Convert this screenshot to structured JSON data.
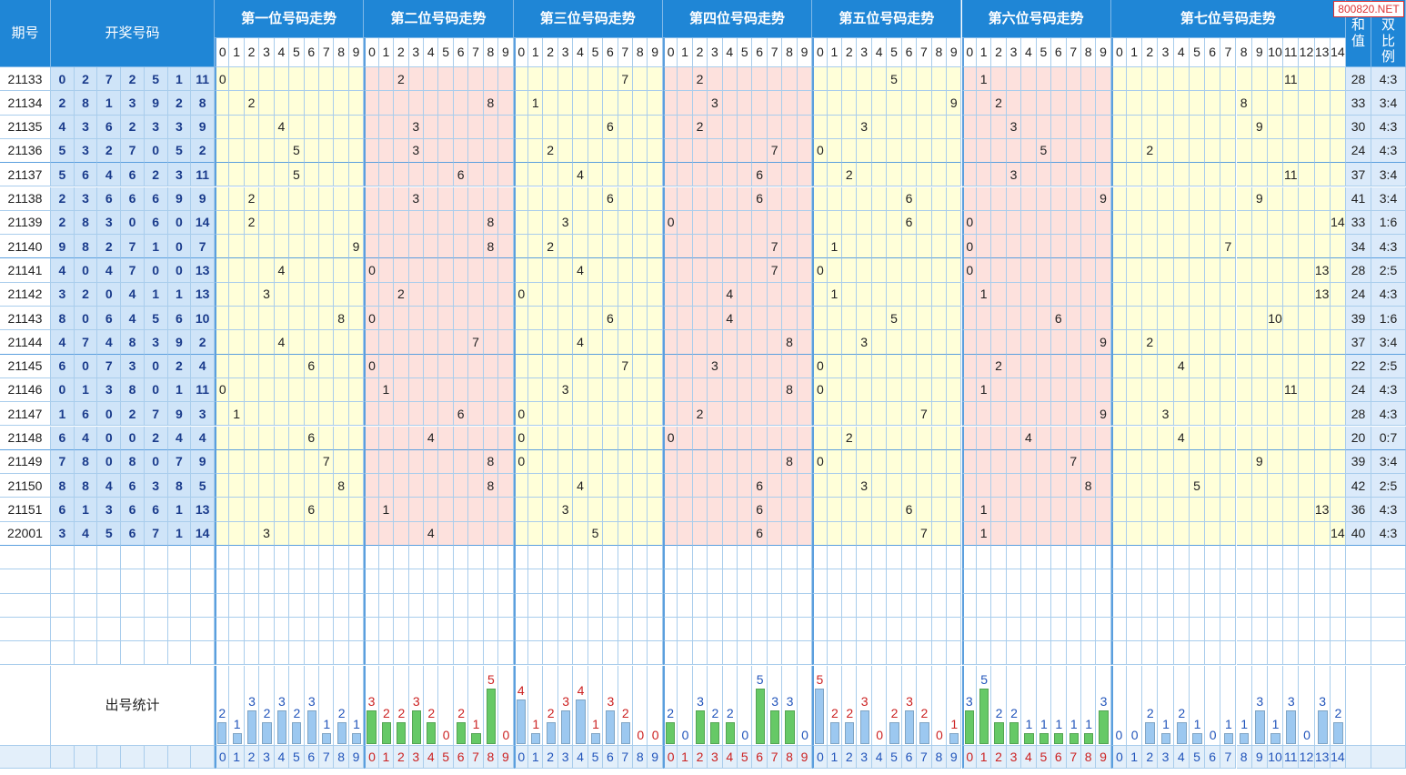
{
  "watermark": "800820.NET",
  "header": {
    "period": "期号",
    "draw": "开奖号码",
    "sum": "和值",
    "ratio": "单双比例",
    "stats": "出号统计"
  },
  "positions": [
    {
      "title": "第一位号码走势",
      "digits": [
        0,
        1,
        2,
        3,
        4,
        5,
        6,
        7,
        8,
        9
      ],
      "counts": [
        2,
        1,
        3,
        2,
        3,
        2,
        3,
        1,
        2,
        1
      ],
      "background": "#ffffd9",
      "count_color": "#2255bb",
      "bar_color": "#9cc8f0",
      "digit_color": "#2255bb"
    },
    {
      "title": "第二位号码走势",
      "digits": [
        0,
        1,
        2,
        3,
        4,
        5,
        6,
        7,
        8,
        9
      ],
      "counts": [
        3,
        2,
        2,
        3,
        2,
        0,
        2,
        1,
        5,
        0
      ],
      "background": "#fde1dd",
      "count_color": "#cc2222",
      "bar_color": "#66c966",
      "digit_color": "#cc2222"
    },
    {
      "title": "第三位号码走势",
      "digits": [
        0,
        1,
        2,
        3,
        4,
        5,
        6,
        7,
        8,
        9
      ],
      "counts": [
        4,
        1,
        2,
        3,
        4,
        1,
        3,
        2,
        0,
        0
      ],
      "background": "#ffffd9",
      "count_color": "#cc2222",
      "bar_color": "#9cc8f0",
      "digit_color": "#2255bb"
    },
    {
      "title": "第四位号码走势",
      "digits": [
        0,
        1,
        2,
        3,
        4,
        5,
        6,
        7,
        8,
        9
      ],
      "counts": [
        2,
        0,
        3,
        2,
        2,
        0,
        5,
        3,
        3,
        0
      ],
      "background": "#fde1dd",
      "count_color": "#2255bb",
      "bar_color": "#66c966",
      "digit_color": "#cc2222"
    },
    {
      "title": "第五位号码走势",
      "digits": [
        0,
        1,
        2,
        3,
        4,
        5,
        6,
        7,
        8,
        9
      ],
      "counts": [
        5,
        2,
        2,
        3,
        0,
        2,
        3,
        2,
        0,
        1
      ],
      "background": "#ffffd9",
      "count_color": "#cc2222",
      "bar_color": "#9cc8f0",
      "digit_color": "#2255bb"
    },
    {
      "title": "第六位号码走势",
      "digits": [
        0,
        1,
        2,
        3,
        4,
        5,
        6,
        7,
        8,
        9
      ],
      "counts": [
        3,
        5,
        2,
        2,
        1,
        1,
        1,
        1,
        1,
        3
      ],
      "background": "#fde1dd",
      "count_color": "#2255bb",
      "bar_color": "#66c966",
      "digit_color": "#cc2222"
    },
    {
      "title": "第七位号码走势",
      "digits": [
        0,
        1,
        2,
        3,
        4,
        5,
        6,
        7,
        8,
        9,
        10,
        11,
        12,
        13,
        14
      ],
      "counts": [
        0,
        0,
        2,
        1,
        2,
        1,
        0,
        1,
        1,
        3,
        1,
        3,
        0,
        3,
        2
      ],
      "background": "#ffffd9",
      "count_color": "#2255bb",
      "bar_color": "#9cc8f0",
      "digit_color": "#2255bb"
    }
  ],
  "rows": [
    {
      "period": "21133",
      "numbers": [
        0,
        2,
        7,
        2,
        5,
        1,
        11
      ],
      "sum": 28,
      "ratio": "4:3"
    },
    {
      "period": "21134",
      "numbers": [
        2,
        8,
        1,
        3,
        9,
        2,
        8
      ],
      "sum": 33,
      "ratio": "3:4"
    },
    {
      "period": "21135",
      "numbers": [
        4,
        3,
        6,
        2,
        3,
        3,
        9
      ],
      "sum": 30,
      "ratio": "4:3"
    },
    {
      "period": "21136",
      "numbers": [
        5,
        3,
        2,
        7,
        0,
        5,
        2
      ],
      "sum": 24,
      "ratio": "4:3"
    },
    {
      "period": "21137",
      "numbers": [
        5,
        6,
        4,
        6,
        2,
        3,
        11
      ],
      "sum": 37,
      "ratio": "3:4"
    },
    {
      "period": "21138",
      "numbers": [
        2,
        3,
        6,
        6,
        6,
        9,
        9
      ],
      "sum": 41,
      "ratio": "3:4"
    },
    {
      "period": "21139",
      "numbers": [
        2,
        8,
        3,
        0,
        6,
        0,
        14
      ],
      "sum": 33,
      "ratio": "1:6"
    },
    {
      "period": "21140",
      "numbers": [
        9,
        8,
        2,
        7,
        1,
        0,
        7
      ],
      "sum": 34,
      "ratio": "4:3"
    },
    {
      "period": "21141",
      "numbers": [
        4,
        0,
        4,
        7,
        0,
        0,
        13
      ],
      "sum": 28,
      "ratio": "2:5"
    },
    {
      "period": "21142",
      "numbers": [
        3,
        2,
        0,
        4,
        1,
        1,
        13
      ],
      "sum": 24,
      "ratio": "4:3"
    },
    {
      "period": "21143",
      "numbers": [
        8,
        0,
        6,
        4,
        5,
        6,
        10
      ],
      "sum": 39,
      "ratio": "1:6"
    },
    {
      "period": "21144",
      "numbers": [
        4,
        7,
        4,
        8,
        3,
        9,
        2
      ],
      "sum": 37,
      "ratio": "3:4"
    },
    {
      "period": "21145",
      "numbers": [
        6,
        0,
        7,
        3,
        0,
        2,
        4
      ],
      "sum": 22,
      "ratio": "2:5"
    },
    {
      "period": "21146",
      "numbers": [
        0,
        1,
        3,
        8,
        0,
        1,
        11
      ],
      "sum": 24,
      "ratio": "4:3"
    },
    {
      "period": "21147",
      "numbers": [
        1,
        6,
        0,
        2,
        7,
        9,
        3
      ],
      "sum": 28,
      "ratio": "4:3"
    },
    {
      "period": "21148",
      "numbers": [
        6,
        4,
        0,
        0,
        2,
        4,
        4
      ],
      "sum": 20,
      "ratio": "0:7"
    },
    {
      "period": "21149",
      "numbers": [
        7,
        8,
        0,
        8,
        0,
        7,
        9
      ],
      "sum": 39,
      "ratio": "3:4"
    },
    {
      "period": "21150",
      "numbers": [
        8,
        8,
        4,
        6,
        3,
        8,
        5
      ],
      "sum": 42,
      "ratio": "2:5"
    },
    {
      "period": "21151",
      "numbers": [
        6,
        1,
        3,
        6,
        6,
        1,
        13
      ],
      "sum": 36,
      "ratio": "4:3"
    },
    {
      "period": "22001",
      "numbers": [
        3,
        4,
        5,
        6,
        7,
        1,
        14
      ],
      "sum": 40,
      "ratio": "4:3"
    }
  ]
}
